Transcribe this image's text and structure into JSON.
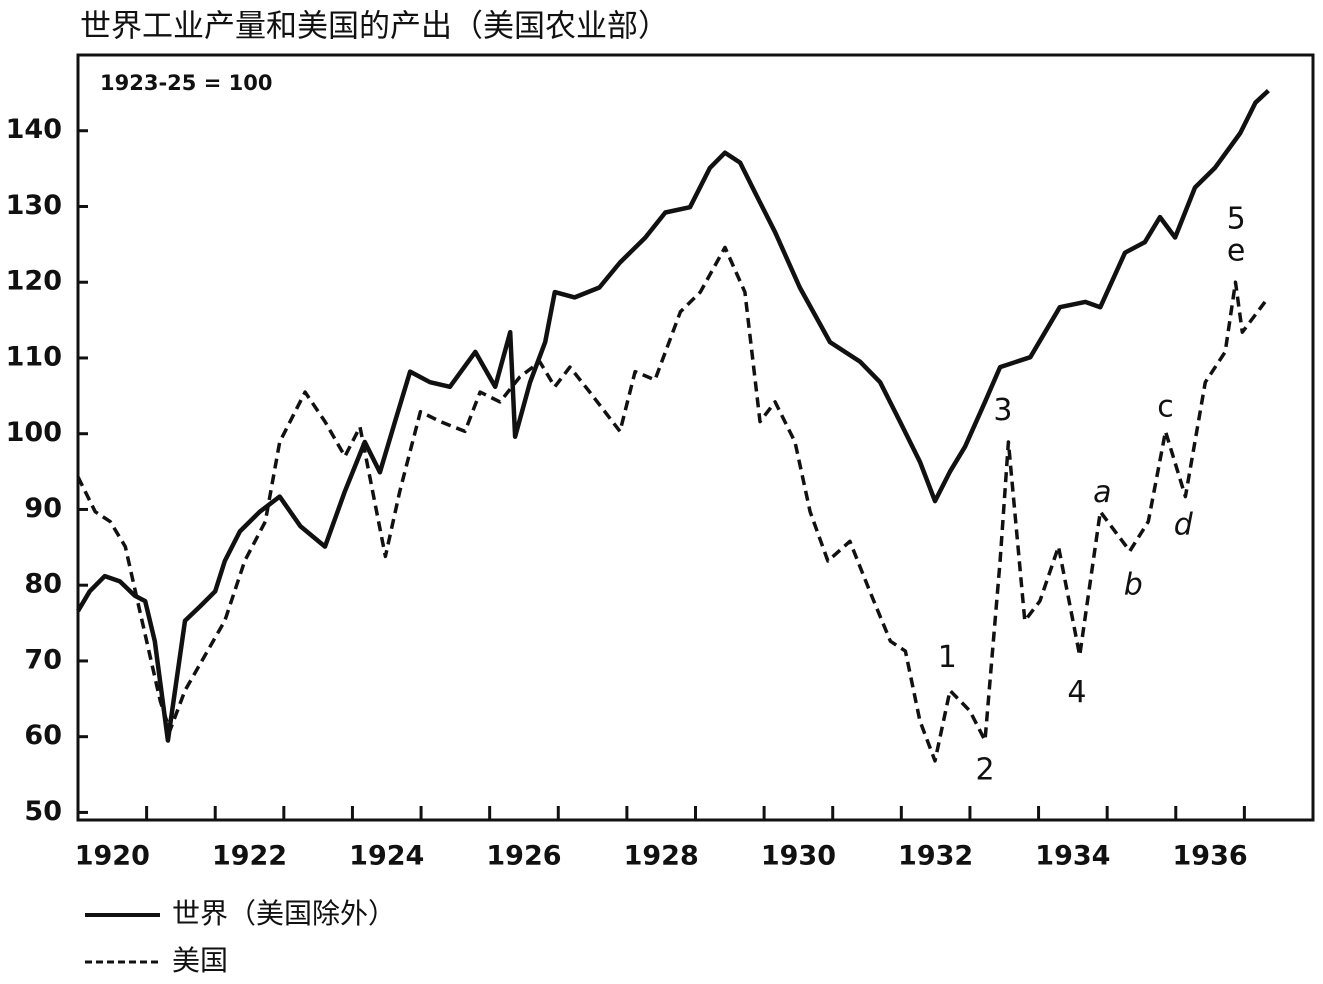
{
  "chart_data": {
    "type": "line",
    "title": "世界工业产量和美国的产出（美国农业部）",
    "subtitle": "1923-25 = 100",
    "xlim": [
      1920,
      1938
    ],
    "ylim": [
      49,
      150
    ],
    "xticks": [
      {
        "value": 1920.5,
        "label": "1920"
      },
      {
        "value": 1922.5,
        "label": "1922"
      },
      {
        "value": 1924.5,
        "label": "1924"
      },
      {
        "value": 1926.5,
        "label": "1926"
      },
      {
        "value": 1928.5,
        "label": "1928"
      },
      {
        "value": 1930.5,
        "label": "1930"
      },
      {
        "value": 1932.5,
        "label": "1932"
      },
      {
        "value": 1934.5,
        "label": "1934"
      },
      {
        "value": 1936.5,
        "label": "1936"
      }
    ],
    "x_year_marks": [
      1921,
      1922,
      1923,
      1924,
      1925,
      1926,
      1927,
      1928,
      1929,
      1930,
      1931,
      1932,
      1933,
      1934,
      1935,
      1936,
      1937
    ],
    "yticks": [
      50,
      60,
      70,
      80,
      90,
      100,
      110,
      120,
      130,
      140
    ],
    "series": [
      {
        "name": "世界（美国除外）",
        "color": "#111111",
        "dash": false,
        "x": [
          1920.0,
          1920.17,
          1920.39,
          1920.61,
          1920.83,
          1920.98,
          1921.12,
          1921.31,
          1921.56,
          1921.78,
          1922.0,
          1922.14,
          1922.36,
          1922.65,
          1922.94,
          1923.24,
          1923.6,
          1923.89,
          1924.18,
          1924.4,
          1924.62,
          1924.84,
          1925.13,
          1925.42,
          1925.79,
          1926.08,
          1926.3,
          1926.37,
          1926.59,
          1926.81,
          1926.95,
          1927.24,
          1927.6,
          1927.9,
          1928.27,
          1928.56,
          1928.92,
          1929.21,
          1929.43,
          1929.65,
          1929.87,
          1930.16,
          1930.52,
          1930.96,
          1931.4,
          1931.69,
          1931.98,
          1932.27,
          1932.49,
          1932.71,
          1932.93,
          1933.22,
          1933.44,
          1933.88,
          1934.31,
          1934.68,
          1934.9,
          1935.26,
          1935.55,
          1935.77,
          1935.99,
          1936.28,
          1936.57,
          1936.94,
          1937.16,
          1937.35
        ],
        "values": [
          76.6,
          79.2,
          81.2,
          80.5,
          78.6,
          77.9,
          72.6,
          59.5,
          75.3,
          77.2,
          79.2,
          83.2,
          87.1,
          89.7,
          91.7,
          87.8,
          85.1,
          92.4,
          98.9,
          94.9,
          101.6,
          108.2,
          106.8,
          106.2,
          110.8,
          106.2,
          113.4,
          99.6,
          106.8,
          112.1,
          118.7,
          118.0,
          119.3,
          122.6,
          125.9,
          129.2,
          129.9,
          135.1,
          137.1,
          135.8,
          131.8,
          126.6,
          119.3,
          112.1,
          109.5,
          106.8,
          101.6,
          96.3,
          91.1,
          95.0,
          98.3,
          104.2,
          108.8,
          110.1,
          116.7,
          117.4,
          116.7,
          123.9,
          125.3,
          128.6,
          125.9,
          132.5,
          135.1,
          139.7,
          143.7,
          145.3
        ]
      },
      {
        "name": "美国",
        "color": "#111111",
        "dash": true,
        "x": [
          1920.0,
          1920.25,
          1920.47,
          1920.69,
          1920.9,
          1921.2,
          1921.34,
          1921.56,
          1921.85,
          1922.14,
          1922.43,
          1922.73,
          1922.94,
          1923.31,
          1923.6,
          1923.89,
          1924.11,
          1924.48,
          1924.69,
          1924.99,
          1925.28,
          1925.64,
          1925.86,
          1926.15,
          1926.44,
          1926.73,
          1926.95,
          1927.17,
          1927.46,
          1927.9,
          1928.12,
          1928.41,
          1928.78,
          1929.07,
          1929.43,
          1929.72,
          1929.94,
          1930.16,
          1930.45,
          1930.67,
          1930.93,
          1931.25,
          1931.54,
          1931.84,
          1932.06,
          1932.27,
          1932.49,
          1932.71,
          1933.0,
          1933.22,
          1933.44,
          1933.56,
          1933.8,
          1934.02,
          1934.29,
          1934.6,
          1934.9,
          1935.33,
          1935.6,
          1935.85,
          1936.14,
          1936.43,
          1936.72,
          1936.87,
          1936.97,
          1937.3
        ],
        "values": [
          94.3,
          89.7,
          88.4,
          85.1,
          76.6,
          64.7,
          60.8,
          66.1,
          70.7,
          75.3,
          83.2,
          88.4,
          98.9,
          105.5,
          101.6,
          97.0,
          100.9,
          83.8,
          92.4,
          102.9,
          101.6,
          100.3,
          105.5,
          104.2,
          107.5,
          109.5,
          106.2,
          108.8,
          105.5,
          100.3,
          108.2,
          107.1,
          116.1,
          118.7,
          124.6,
          118.7,
          101.6,
          104.2,
          98.9,
          89.7,
          83.2,
          85.8,
          79.2,
          72.6,
          71.3,
          62.1,
          56.8,
          66.1,
          63.4,
          59.5,
          83.2,
          98.9,
          75.3,
          77.9,
          85.1,
          70.7,
          89.7,
          84.5,
          88.4,
          100.3,
          91.7,
          106.8,
          110.8,
          120.0,
          113.4,
          117.4
        ]
      }
    ],
    "annotations": [
      {
        "text": "1",
        "x": 1932.67,
        "y": 70.3,
        "italic": false
      },
      {
        "text": "2",
        "x": 1933.22,
        "y": 55.5,
        "italic": false
      },
      {
        "text": "3",
        "x": 1933.48,
        "y": 102.9,
        "italic": false
      },
      {
        "text": "4",
        "x": 1934.56,
        "y": 65.7,
        "italic": false
      },
      {
        "text": "5",
        "x": 1936.88,
        "y": 128.2,
        "italic": false
      },
      {
        "text": "e",
        "x": 1936.88,
        "y": 124.0,
        "italic": false
      },
      {
        "text": "a",
        "x": 1934.93,
        "y": 92.1,
        "italic": true
      },
      {
        "text": "b",
        "x": 1935.38,
        "y": 79.9,
        "italic": true
      },
      {
        "text": "c",
        "x": 1935.85,
        "y": 103.4,
        "italic": false
      },
      {
        "text": "d",
        "x": 1936.11,
        "y": 87.8,
        "italic": true
      }
    ]
  }
}
